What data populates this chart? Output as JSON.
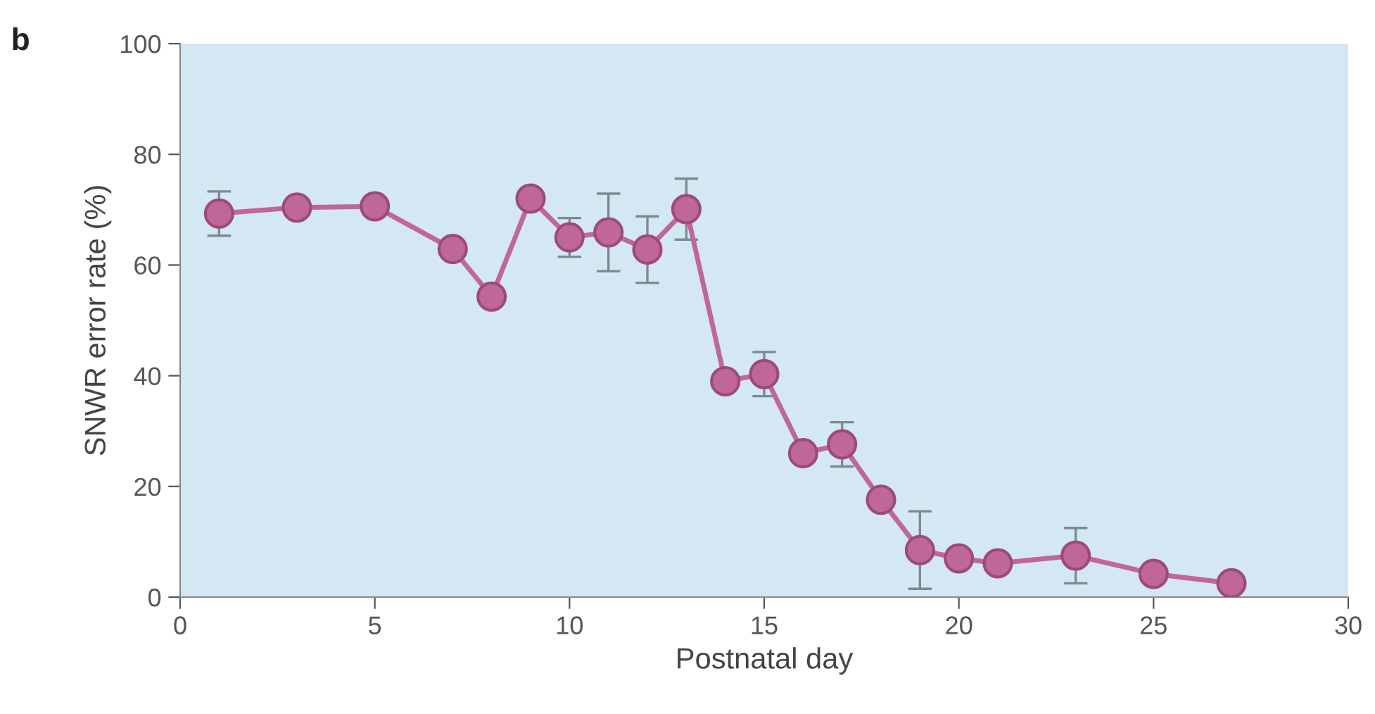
{
  "chart_data": {
    "type": "line",
    "xlabel": "Postnatal day",
    "ylabel": "SNWR error rate (%)",
    "annotations": [
      "b"
    ],
    "x": [
      1,
      3,
      5,
      7,
      8,
      9,
      10,
      11,
      12,
      13,
      14,
      15,
      16,
      17,
      18,
      19,
      20,
      21,
      23,
      25,
      27
    ],
    "series": [
      {
        "color": "#c0679a",
        "values": [
          69.3,
          70.4,
          70.6,
          62.9,
          54.3,
          72,
          65,
          65.9,
          62.8,
          70.1,
          39,
          40.3,
          26,
          27.6,
          17.6,
          8.5,
          7,
          6.1,
          7.5,
          4.2,
          2.5
        ],
        "errors": [
          4,
          null,
          null,
          null,
          null,
          null,
          3.5,
          7,
          6,
          5.5,
          null,
          4,
          null,
          4,
          null,
          7,
          null,
          null,
          5,
          null,
          null
        ]
      }
    ],
    "xlim": [
      0,
      30
    ],
    "xticks": [
      0,
      5,
      10,
      15,
      20,
      25,
      30
    ],
    "ylim": [
      0,
      100
    ],
    "yticks": [
      0,
      20,
      40,
      60,
      80,
      100
    ],
    "grid": false,
    "legend": false,
    "marker": "circle",
    "line_style": "solid"
  }
}
